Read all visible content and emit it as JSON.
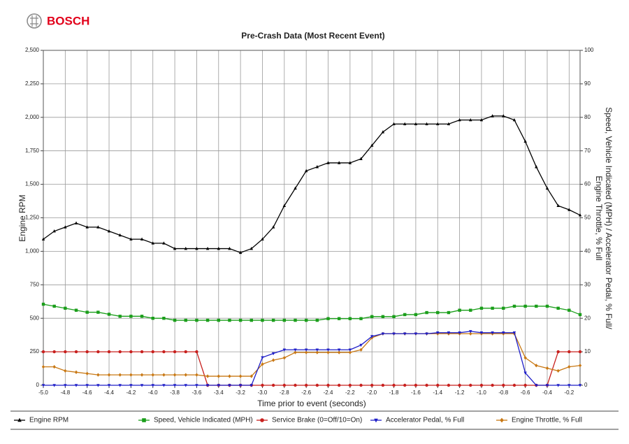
{
  "header": {
    "brand": "BOSCH"
  },
  "chart_data": {
    "type": "line",
    "title": "Pre-Crash Data (Most Recent Event)",
    "x_label": "Time prior to event (seconds)",
    "y_label": "Engine RPM",
    "y2_label": [
      "Speed, Vehicle Indicated (MPH) / Accelerator Pedal, % Full/",
      "Engine Throttle, % Full"
    ],
    "x": [
      -5.0,
      -4.9,
      -4.8,
      -4.7,
      -4.6,
      -4.5,
      -4.4,
      -4.3,
      -4.2,
      -4.1,
      -4.0,
      -3.9,
      -3.8,
      -3.7,
      -3.6,
      -3.5,
      -3.4,
      -3.3,
      -3.2,
      -3.1,
      -3.0,
      -2.9,
      -2.8,
      -2.7,
      -2.6,
      -2.5,
      -2.4,
      -2.3,
      -2.2,
      -2.1,
      -2.0,
      -1.9,
      -1.8,
      -1.7,
      -1.6,
      -1.5,
      -1.4,
      -1.3,
      -1.2,
      -1.1,
      -1.0,
      -0.9,
      -0.8,
      -0.7,
      -0.6,
      -0.5,
      -0.4,
      -0.3,
      -0.2,
      -0.1
    ],
    "xlim": [
      -5.0,
      -0.1
    ],
    "xticks": [
      {
        "value": -5.0,
        "label": "-5.0"
      },
      -4.8,
      -4.6,
      -4.4,
      -4.2,
      {
        "value": -4.0,
        "label": "-4.0"
      },
      -3.8,
      -3.6,
      -3.4,
      -3.2,
      {
        "value": -3.0,
        "label": "-3.0"
      },
      -2.8,
      -2.6,
      -2.4,
      -2.2,
      {
        "value": -2.0,
        "label": "-2.0"
      },
      -1.8,
      -1.6,
      -1.4,
      -1.2,
      {
        "value": -1.0,
        "label": "-1.0"
      },
      -0.8,
      -0.6,
      -0.4,
      -0.2
    ],
    "ylim": [
      0,
      2500
    ],
    "yticks": [
      0,
      250,
      500,
      750,
      {
        "value": 1000,
        "label": "1,000"
      },
      {
        "value": 1250,
        "label": "1,250"
      },
      {
        "value": 1500,
        "label": "1,500"
      },
      {
        "value": 1750,
        "label": "1,750"
      },
      {
        "value": 2000,
        "label": "2,000"
      },
      {
        "value": 2250,
        "label": "2,250"
      },
      {
        "value": 2500,
        "label": "2,500"
      }
    ],
    "y2lim": [
      0,
      100
    ],
    "y2ticks": [
      0,
      10,
      20,
      30,
      40,
      50,
      60,
      70,
      80,
      90,
      100
    ],
    "grid": true,
    "series": [
      {
        "name": "Engine RPM",
        "color": "#000000",
        "marker": "triangle-up",
        "values": [
          1090,
          1150,
          1180,
          1210,
          1180,
          1180,
          1150,
          1120,
          1090,
          1090,
          1060,
          1060,
          1020,
          1020,
          1020,
          1020,
          1020,
          1020,
          990,
          1020,
          1090,
          1180,
          1340,
          1470,
          1600,
          1630,
          1660,
          1660,
          1660,
          1690,
          1790,
          1890,
          1950,
          1950,
          1950,
          1950,
          1950,
          1950,
          1980,
          1980,
          1980,
          2010,
          2010,
          1980,
          1820,
          1630,
          1470,
          1340,
          1310,
          1270
        ]
      },
      {
        "name": "Speed, Vehicle Indicated (MPH)",
        "color": "#1a9e1a",
        "marker": "square",
        "axis": "y2",
        "values": [
          24.2,
          23.6,
          23.0,
          22.4,
          21.8,
          21.8,
          21.2,
          20.6,
          20.6,
          20.6,
          20.0,
          20.0,
          19.4,
          19.4,
          19.4,
          19.4,
          19.4,
          19.4,
          19.4,
          19.4,
          19.4,
          19.4,
          19.4,
          19.4,
          19.4,
          19.4,
          19.9,
          19.9,
          19.9,
          19.9,
          20.5,
          20.5,
          20.5,
          21.1,
          21.1,
          21.7,
          21.7,
          21.7,
          22.4,
          22.4,
          23.0,
          23.0,
          23.0,
          23.6,
          23.6,
          23.6,
          23.6,
          23.0,
          22.4,
          21.1
        ]
      },
      {
        "name": "Service Brake (0=Off/10=On)",
        "color": "#c8201e",
        "marker": "circle",
        "axis": "y2",
        "values": [
          10,
          10,
          10,
          10,
          10,
          10,
          10,
          10,
          10,
          10,
          10,
          10,
          10,
          10,
          10,
          0,
          0,
          0,
          0,
          0,
          0,
          0,
          0,
          0,
          0,
          0,
          0,
          0,
          0,
          0,
          0,
          0,
          0,
          0,
          0,
          0,
          0,
          0,
          0,
          0,
          0,
          0,
          0,
          0,
          0,
          0,
          0,
          10,
          10,
          10
        ]
      },
      {
        "name": "Accelerator Pedal, % Full",
        "color": "#1f1fc8",
        "marker": "triangle-down",
        "axis": "y2",
        "values": [
          0,
          0,
          0,
          0,
          0,
          0,
          0,
          0,
          0,
          0,
          0,
          0,
          0,
          0,
          0,
          0,
          0,
          0,
          0,
          0,
          8.3,
          9.5,
          10.6,
          10.6,
          10.6,
          10.6,
          10.6,
          10.6,
          10.6,
          12.0,
          14.6,
          15.4,
          15.4,
          15.4,
          15.4,
          15.4,
          15.7,
          15.7,
          15.7,
          16.1,
          15.7,
          15.7,
          15.7,
          15.7,
          3.7,
          0,
          0,
          0,
          0,
          0
        ]
      },
      {
        "name": "Engine Throttle, % Full",
        "color": "#c87814",
        "marker": "diamond",
        "axis": "y2",
        "values": [
          5.5,
          5.5,
          4.3,
          3.9,
          3.5,
          3.1,
          3.1,
          3.1,
          3.1,
          3.1,
          3.1,
          3.1,
          3.1,
          3.1,
          3.1,
          2.7,
          2.7,
          2.7,
          2.7,
          2.7,
          6.3,
          7.5,
          8.2,
          9.8,
          9.8,
          9.8,
          9.8,
          9.8,
          9.8,
          10.6,
          14.2,
          15.4,
          15.4,
          15.4,
          15.4,
          15.4,
          15.4,
          15.4,
          15.4,
          15.4,
          15.4,
          15.4,
          15.4,
          15.4,
          8.2,
          5.9,
          5.1,
          4.3,
          5.5,
          5.9
        ]
      }
    ]
  }
}
